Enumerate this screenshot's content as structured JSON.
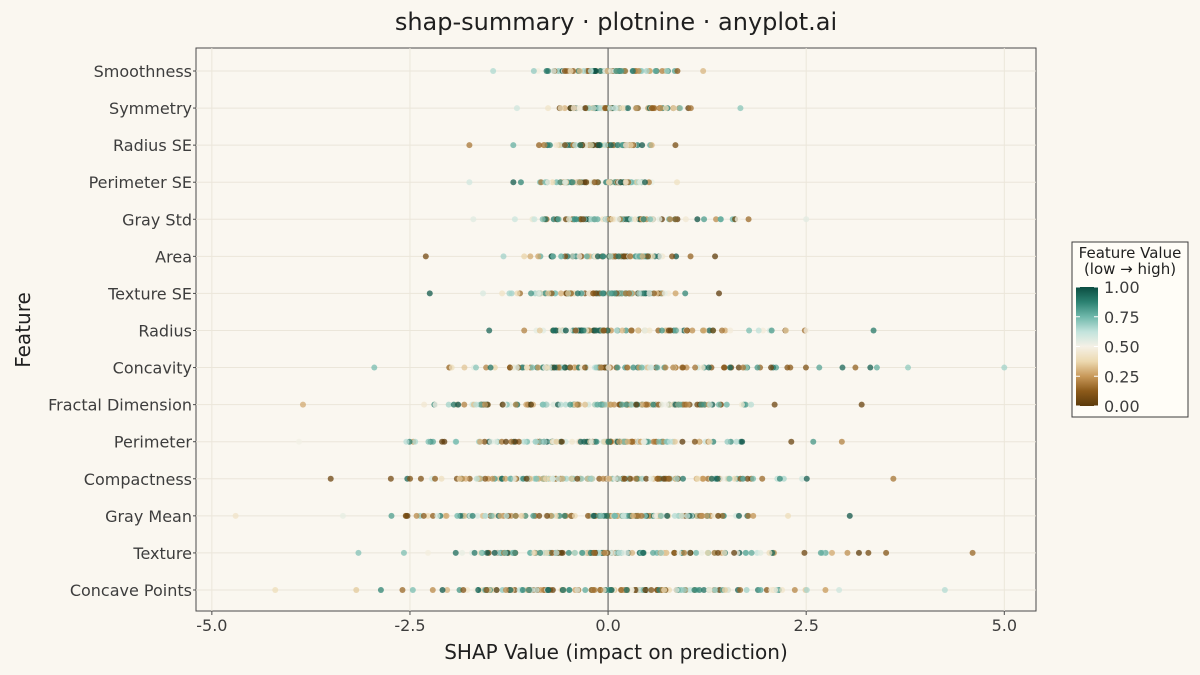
{
  "chart_data": {
    "type": "scatter",
    "title": "shap-summary · plotnine · anyplot.ai",
    "xlabel": "SHAP Value (impact on prediction)",
    "ylabel": "Feature",
    "xlim": [
      -5.2,
      5.4
    ],
    "x_ticks": [
      -5.0,
      -2.5,
      0.0,
      2.5,
      5.0
    ],
    "x_tick_labels": [
      "-5.0",
      "-2.5",
      "0.0",
      "2.5",
      "5.0"
    ],
    "reference_line_x": 0,
    "grid": true,
    "features": [
      "Smoothness",
      "Symmetry",
      "Radius SE",
      "Perimeter SE",
      "Gray Std",
      "Area",
      "Texture SE",
      "Radius",
      "Concavity",
      "Fractal Dimension",
      "Perimeter",
      "Compactness",
      "Gray Mean",
      "Texture",
      "Concave Points"
    ],
    "ranges": [
      [
        -1.45,
        1.2
      ],
      [
        -1.15,
        1.67
      ],
      [
        -1.75,
        0.85
      ],
      [
        -1.75,
        0.87
      ],
      [
        -1.7,
        2.5
      ],
      [
        -2.3,
        1.35
      ],
      [
        -2.25,
        1.4
      ],
      [
        -1.5,
        3.35
      ],
      [
        -2.95,
        5.0
      ],
      [
        -3.85,
        3.2
      ],
      [
        -3.9,
        2.95
      ],
      [
        -3.5,
        3.6
      ],
      [
        -4.7,
        3.05
      ],
      [
        -3.15,
        4.6
      ],
      [
        -4.2,
        4.25
      ]
    ],
    "counts": [
      90,
      90,
      90,
      90,
      100,
      90,
      110,
      110,
      140,
      150,
      150,
      170,
      180,
      170,
      180
    ],
    "colorbar": {
      "title_lines": [
        "Feature Value",
        "(low → high)"
      ],
      "min": 0,
      "max": 1,
      "ticks": [
        1.0,
        0.75,
        0.5,
        0.25,
        0.0
      ],
      "tick_labels": [
        "1.00",
        "0.75",
        "0.50",
        "0.25",
        "0.00"
      ],
      "colors": [
        "#5b3a0b",
        "#8c5a1a",
        "#c8995a",
        "#ecd9b0",
        "#f5f1e6",
        "#c2e3dc",
        "#6fb8ab",
        "#2b8171",
        "#0b4d41"
      ]
    },
    "legend_placement": "right",
    "point_opacity": 0.75
  }
}
